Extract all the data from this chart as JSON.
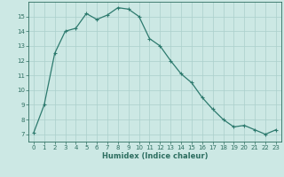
{
  "x": [
    0,
    1,
    2,
    3,
    4,
    5,
    6,
    7,
    8,
    9,
    10,
    11,
    12,
    13,
    14,
    15,
    16,
    17,
    18,
    19,
    20,
    21,
    22,
    23
  ],
  "y": [
    7.1,
    9.0,
    12.5,
    14.0,
    14.2,
    15.2,
    14.8,
    15.1,
    15.6,
    15.5,
    15.0,
    13.5,
    13.0,
    12.0,
    11.1,
    10.5,
    9.5,
    8.7,
    8.0,
    7.5,
    7.6,
    7.3,
    7.0,
    7.3
  ],
  "line_color": "#2d7a6e",
  "marker": "+",
  "bg_color": "#cce8e4",
  "grid_color": "#aacfcb",
  "xlabel": "Humidex (Indice chaleur)",
  "xlim": [
    -0.5,
    23.5
  ],
  "ylim": [
    6.5,
    16.0
  ],
  "yticks": [
    7,
    8,
    9,
    10,
    11,
    12,
    13,
    14,
    15
  ],
  "xticks": [
    0,
    1,
    2,
    3,
    4,
    5,
    6,
    7,
    8,
    9,
    10,
    11,
    12,
    13,
    14,
    15,
    16,
    17,
    18,
    19,
    20,
    21,
    22,
    23
  ],
  "tick_fontsize": 5.0,
  "label_fontsize": 6.0,
  "axis_color": "#2d6e60",
  "linewidth": 0.9,
  "markersize": 3.0
}
